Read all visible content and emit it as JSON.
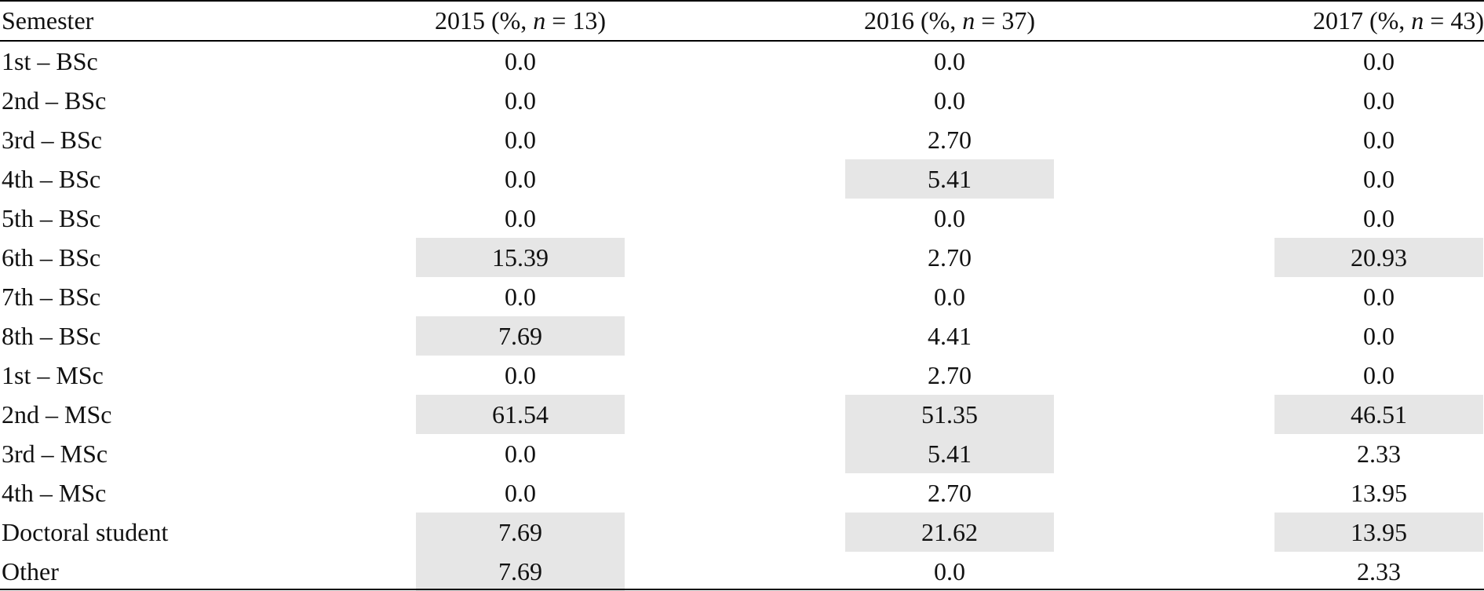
{
  "table": {
    "headers": {
      "semester": "Semester",
      "col2015_prefix": "2015 (%, ",
      "col2015_n": "n",
      "col2015_suffix": " = 13)",
      "col2016_prefix": "2016 (%, ",
      "col2016_n": "n",
      "col2016_suffix": " = 37)",
      "col2017_prefix": "2017 (%, ",
      "col2017_n": "n",
      "col2017_suffix": " = 43)"
    },
    "rows": [
      {
        "label": "1st – BSc",
        "v2015": "0.0",
        "v2016": "0.0",
        "v2017": "0.0",
        "hl2015": false,
        "hl2016": false,
        "hl2017": false
      },
      {
        "label": "2nd – BSc",
        "v2015": "0.0",
        "v2016": "0.0",
        "v2017": "0.0",
        "hl2015": false,
        "hl2016": false,
        "hl2017": false
      },
      {
        "label": "3rd – BSc",
        "v2015": "0.0",
        "v2016": "2.70",
        "v2017": "0.0",
        "hl2015": false,
        "hl2016": false,
        "hl2017": false
      },
      {
        "label": "4th – BSc",
        "v2015": "0.0",
        "v2016": "5.41",
        "v2017": "0.0",
        "hl2015": false,
        "hl2016": true,
        "hl2017": false
      },
      {
        "label": "5th – BSc",
        "v2015": "0.0",
        "v2016": "0.0",
        "v2017": "0.0",
        "hl2015": false,
        "hl2016": false,
        "hl2017": false
      },
      {
        "label": "6th – BSc",
        "v2015": "15.39",
        "v2016": "2.70",
        "v2017": "20.93",
        "hl2015": true,
        "hl2016": false,
        "hl2017": true
      },
      {
        "label": "7th – BSc",
        "v2015": "0.0",
        "v2016": "0.0",
        "v2017": "0.0",
        "hl2015": false,
        "hl2016": false,
        "hl2017": false
      },
      {
        "label": "8th – BSc",
        "v2015": "7.69",
        "v2016": "4.41",
        "v2017": "0.0",
        "hl2015": true,
        "hl2016": false,
        "hl2017": false
      },
      {
        "label": "1st – MSc",
        "v2015": "0.0",
        "v2016": "2.70",
        "v2017": "0.0",
        "hl2015": false,
        "hl2016": false,
        "hl2017": false
      },
      {
        "label": "2nd – MSc",
        "v2015": "61.54",
        "v2016": "51.35",
        "v2017": "46.51",
        "hl2015": true,
        "hl2016": true,
        "hl2017": true
      },
      {
        "label": "3rd – MSc",
        "v2015": "0.0",
        "v2016": "5.41",
        "v2017": "2.33",
        "hl2015": false,
        "hl2016": true,
        "hl2017": false
      },
      {
        "label": "4th – MSc",
        "v2015": "0.0",
        "v2016": "2.70",
        "v2017": "13.95",
        "hl2015": false,
        "hl2016": false,
        "hl2017": false
      },
      {
        "label": "Doctoral student",
        "v2015": "7.69",
        "v2016": "21.62",
        "v2017": "13.95",
        "hl2015": true,
        "hl2016": true,
        "hl2017": true
      },
      {
        "label": "Other",
        "v2015": "7.69",
        "v2016": "0.0",
        "v2017": "2.33",
        "hl2015": true,
        "hl2016": false,
        "hl2017": false
      }
    ],
    "highlight_color": "#e6e6e6",
    "rule_color": "#000000"
  }
}
